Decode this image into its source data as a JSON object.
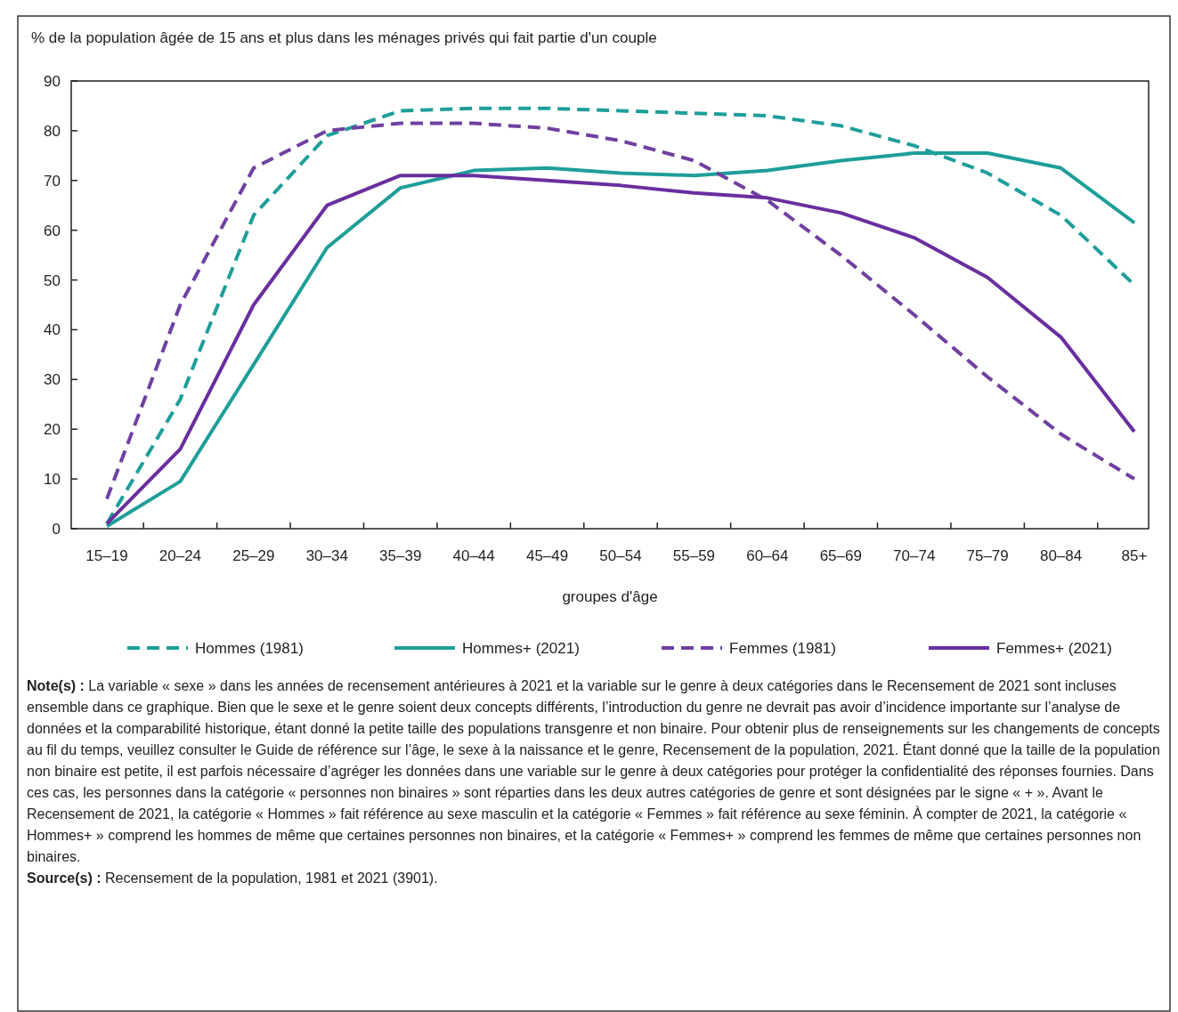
{
  "chart_data": {
    "type": "line",
    "ylabel": "% de la population âgée de 15 ans et plus dans les ménages privés qui fait partie d'un couple",
    "xlabel": "groupes d'âge",
    "categories": [
      "15–19",
      "20–24",
      "25–29",
      "30–34",
      "35–39",
      "40–44",
      "45–49",
      "50–54",
      "55–59",
      "60–64",
      "65–69",
      "70–74",
      "75–79",
      "80–84",
      "85+"
    ],
    "ylim": [
      0,
      90
    ],
    "yticks": [
      0,
      10,
      20,
      30,
      40,
      50,
      60,
      70,
      80,
      90
    ],
    "grid": false,
    "legend": "bottom",
    "marker": "none",
    "series": [
      {
        "name": "Hommes (1981)",
        "color": "#1e9e9a",
        "line_style": "dashed",
        "values": [
          1,
          26,
          63,
          79,
          84,
          84.5,
          84.5,
          84,
          83.5,
          83,
          81,
          77,
          71.5,
          63,
          49
        ]
      },
      {
        "name": "Hommes+ (2021)",
        "color": "#1e9e9a",
        "line_style": "solid",
        "values": [
          0.5,
          9.5,
          33,
          56.5,
          68.5,
          72,
          72.5,
          71.5,
          71,
          72,
          74,
          75.5,
          75.5,
          72.5,
          61.5
        ]
      },
      {
        "name": "Femmes (1981)",
        "color": "#7040a0",
        "line_style": "dashed",
        "values": [
          6,
          45,
          72.5,
          80,
          81.5,
          81.5,
          80.5,
          78,
          74,
          66,
          55,
          43,
          30.5,
          19,
          10
        ]
      },
      {
        "name": "Femmes+ (2021)",
        "color": "#6a2e9e",
        "line_style": "solid",
        "values": [
          1,
          16,
          45,
          65,
          71,
          71,
          70,
          69,
          67.5,
          66.5,
          63.5,
          58.5,
          50.5,
          38.5,
          19.5
        ]
      }
    ],
    "annotations": [
      "Note(s) : La variable « sexe » dans les années de recensement antérieures à 2021 et la variable sur le genre à deux catégories dans le Recensement de 2021 sont incluses ensemble dans ce graphique. Bien que le sexe et le genre soient deux concepts différents, l’introduction du genre ne devrait pas avoir d’incidence importante sur l’analyse de données et la comparabilité historique, étant donné la petite taille des populations transgenre et non binaire. Pour obtenir plus de renseignements sur les changements de concepts au fil du temps, veuillez consulter le Guide de référence sur l’âge, le sexe à la naissance et le genre, Recensement de la population, 2021. Étant donné que la taille de la population non binaire est petite, il est parfois nécessaire d’agréger les données dans une variable sur le genre à deux catégories pour protéger la confidentialité des réponses fournies. Dans ces cas, les personnes dans la catégorie « personnes non binaires » sont réparties dans les deux autres catégories de genre et sont désignées par le signe « + ». Avant le Recensement de 2021, la catégorie « Hommes » fait référence au sexe masculin et la catégorie « Femmes » fait référence au sexe féminin. À compter de 2021, la catégorie « Hommes+ » comprend les hommes de même que certaines personnes non binaires, et la catégorie « Femmes+ » comprend les femmes de même que certaines personnes non binaires.",
      "Source(s) : Recensement de la population, 1981 et 2021 (3901)."
    ]
  }
}
